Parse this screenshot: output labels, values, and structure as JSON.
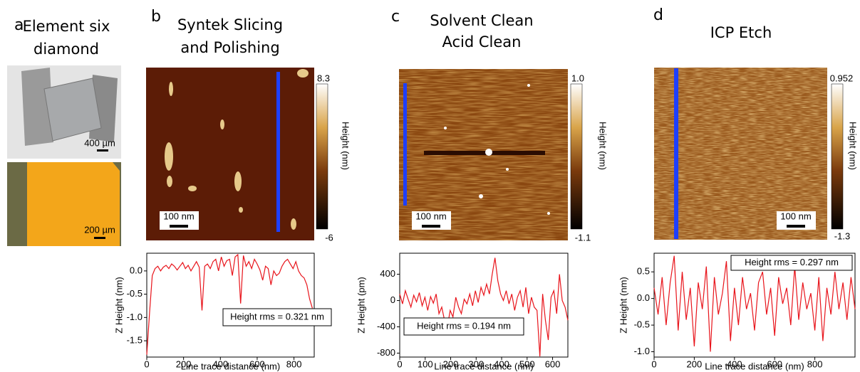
{
  "panels": [
    {
      "label": "a",
      "title_lines": [
        "Element six",
        "diamond"
      ],
      "scale_bars": [
        "400 µm",
        "200 µm"
      ]
    },
    {
      "label": "b",
      "title_lines": [
        "Syntek Slicing",
        "and Polishing"
      ],
      "image_scale_bar": "100 nm",
      "colorbar_label": "Height (nm)",
      "colorbar_ticks": [
        "8.3",
        "-6"
      ]
    },
    {
      "label": "c",
      "title_lines": [
        "Solvent Clean",
        "Acid Clean"
      ],
      "image_scale_bar": "100 nm",
      "colorbar_label": "Height (nm)",
      "colorbar_ticks": [
        "1.0",
        "-1.1"
      ]
    },
    {
      "label": "d",
      "title_lines": [
        "ICP Etch"
      ],
      "image_scale_bar": "100 nm",
      "colorbar_label": "Height (nm)",
      "colorbar_ticks": [
        "0.952",
        "-1.3"
      ]
    }
  ],
  "chart_data": [
    {
      "type": "line",
      "x_label": "Line trace distance (nm)",
      "y_label": "Z Height (nm)",
      "annotation": "Height rms = 0.321 nm",
      "color": "#e8141b",
      "xlim": [
        0,
        910
      ],
      "ylim": [
        -1.85,
        0.38
      ],
      "xticks": [
        0,
        200,
        400,
        600,
        800
      ],
      "yticks": [
        -1.5,
        {
          "value": -1,
          "label": "-1.0"
        },
        -0.5,
        {
          "value": 0,
          "label": "0.0"
        }
      ],
      "x": [
        0,
        15,
        30,
        45,
        60,
        75,
        90,
        105,
        120,
        135,
        150,
        165,
        180,
        195,
        210,
        225,
        240,
        255,
        270,
        285,
        300,
        315,
        330,
        345,
        360,
        375,
        390,
        405,
        420,
        435,
        450,
        465,
        480,
        495,
        510,
        525,
        540,
        555,
        570,
        585,
        600,
        615,
        630,
        645,
        660,
        675,
        690,
        705,
        720,
        735,
        750,
        765,
        780,
        795,
        810,
        825,
        840,
        855,
        870,
        885,
        900
      ],
      "values": [
        -1.8,
        -0.9,
        -0.1,
        0.05,
        0.1,
        0.0,
        0.08,
        0.12,
        0.05,
        0.15,
        0.1,
        0.02,
        0.1,
        0.18,
        0.05,
        0.12,
        0.0,
        0.1,
        0.2,
        0.08,
        -0.85,
        0.1,
        0.15,
        0.05,
        0.2,
        0.25,
        0.0,
        0.3,
        0.1,
        0.22,
        0.25,
        -0.1,
        0.3,
        0.35,
        -0.7,
        0.33,
        0.1,
        0.2,
        0.05,
        0.25,
        0.15,
        0.02,
        -0.2,
        0.1,
        0.05,
        -0.3,
        0.0,
        -0.1,
        -0.05,
        0.1,
        0.2,
        0.25,
        0.15,
        0.05,
        0.2,
        0.0,
        -0.1,
        -0.15,
        -0.3,
        -0.6,
        -0.8
      ]
    },
    {
      "type": "line",
      "x_label": "Line trace distance (nm)",
      "y_label": "Z Height (pm)",
      "annotation": "Height rms = 0.194 nm",
      "color": "#e8141b",
      "xlim": [
        0,
        660
      ],
      "ylim": [
        -860,
        720
      ],
      "xticks": [
        0,
        100,
        200,
        300,
        400,
        500,
        600
      ],
      "yticks": [
        -800,
        -400,
        0,
        400
      ],
      "x": [
        0,
        11,
        22,
        33,
        44,
        55,
        66,
        77,
        88,
        99,
        110,
        121,
        132,
        143,
        154,
        165,
        176,
        187,
        198,
        209,
        220,
        231,
        242,
        253,
        264,
        275,
        286,
        297,
        308,
        319,
        330,
        341,
        352,
        363,
        374,
        385,
        396,
        407,
        418,
        429,
        440,
        451,
        462,
        473,
        484,
        495,
        506,
        517,
        528,
        539,
        550,
        561,
        572,
        583,
        594,
        605,
        616,
        627,
        638,
        649,
        660
      ],
      "values": [
        100,
        -50,
        150,
        20,
        -100,
        80,
        -20,
        120,
        -80,
        50,
        -150,
        60,
        -40,
        100,
        -200,
        -100,
        -300,
        -400,
        -150,
        -250,
        50,
        -100,
        -200,
        20,
        -50,
        100,
        -80,
        150,
        -30,
        200,
        80,
        250,
        100,
        400,
        650,
        300,
        100,
        0,
        150,
        -50,
        100,
        -150,
        50,
        150,
        -100,
        200,
        -200,
        50,
        -100,
        -150,
        -850,
        100,
        -300,
        -600,
        50,
        150,
        -200,
        400,
        0,
        -100,
        -300
      ]
    },
    {
      "type": "line",
      "x_label": "Line trace distance (nm)",
      "y_label": "Z Height (nm)",
      "annotation": "Height rms = 0.297 nm",
      "color": "#e8141b",
      "xlim": [
        0,
        1000
      ],
      "ylim": [
        -1.1,
        0.85
      ],
      "xticks": [
        0,
        200,
        400,
        600,
        800
      ],
      "yticks": [
        {
          "value": -1,
          "label": "-1.0"
        },
        -0.5,
        {
          "value": 0,
          "label": "0.0"
        },
        0.5
      ],
      "x": [
        0,
        20,
        40,
        60,
        80,
        100,
        120,
        140,
        160,
        180,
        200,
        220,
        240,
        260,
        280,
        300,
        320,
        340,
        360,
        380,
        400,
        420,
        440,
        460,
        480,
        500,
        520,
        540,
        560,
        580,
        600,
        620,
        640,
        660,
        680,
        700,
        720,
        740,
        760,
        780,
        800,
        820,
        840,
        860,
        880,
        900,
        920,
        940,
        960,
        980,
        1000
      ],
      "values": [
        0.2,
        -0.3,
        0.4,
        -0.5,
        0.3,
        0.8,
        -0.6,
        0.5,
        -0.4,
        0.2,
        -0.9,
        0.3,
        -0.2,
        0.6,
        -1.0,
        0.4,
        -0.3,
        0.1,
        0.7,
        -0.8,
        0.2,
        -0.5,
        0.4,
        -0.2,
        0.1,
        -0.6,
        0.3,
        0.5,
        -0.3,
        0.2,
        -0.7,
        0.4,
        -0.1,
        0.2,
        -0.5,
        0.6,
        -0.4,
        0.3,
        -0.2,
        0.1,
        -0.6,
        0.4,
        -0.8,
        0.2,
        -0.3,
        0.5,
        -0.2,
        0.3,
        -0.4,
        0.4,
        -0.2
      ]
    }
  ]
}
